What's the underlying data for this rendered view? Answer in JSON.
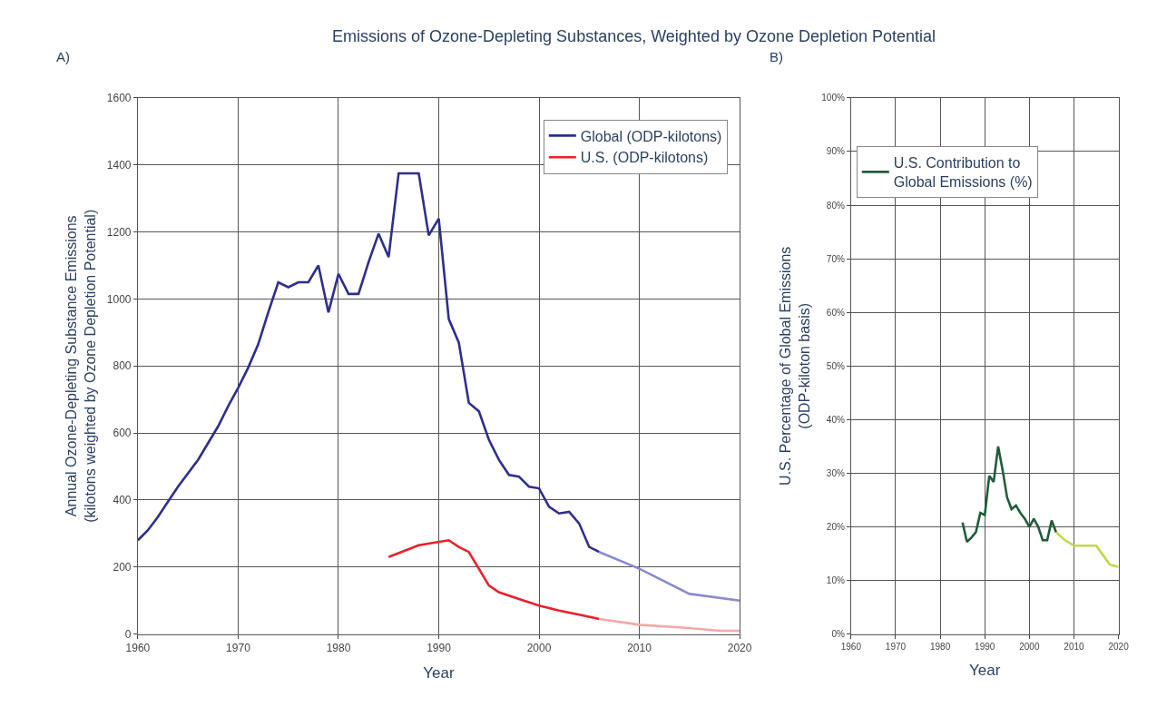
{
  "chart_data": [
    {
      "type": "line",
      "title": "Emissions of Ozone-Depleting Substances, Weighted by Ozone Depletion Potential",
      "annotations": [
        "A)"
      ],
      "xlabel": "Year",
      "ylabel": "Annual Ozone-Depleting Substance Emissions\n(kilotons weighted by Ozone Depletion Potential)",
      "xlim": [
        1960,
        2020
      ],
      "xticks": [
        1960,
        1970,
        1980,
        1990,
        2000,
        2010,
        2020
      ],
      "ylim": [
        0,
        1600
      ],
      "yticks": [
        0,
        200,
        400,
        600,
        800,
        1000,
        1200,
        1400,
        1600
      ],
      "grid": true,
      "legend": "top right",
      "line_style": "solid",
      "marker": "none",
      "series": [
        {
          "name": "Global (ODP-kilotons)",
          "color": "#2e2e8c",
          "x": [
            1960,
            1961,
            1962,
            1963,
            1964,
            1965,
            1966,
            1967,
            1968,
            1969,
            1970,
            1971,
            1972,
            1973,
            1974,
            1975,
            1976,
            1977,
            1978,
            1979,
            1980,
            1981,
            1982,
            1983,
            1984,
            1985,
            1986,
            1987,
            1988,
            1989,
            1990,
            1991,
            1992,
            1993,
            1994,
            1995,
            1996,
            1997,
            1998,
            1999,
            2000,
            2001,
            2002,
            2003,
            2004,
            2005,
            2006
          ],
          "values": [
            280,
            310,
            350,
            395,
            440,
            480,
            520,
            570,
            620,
            680,
            735,
            795,
            865,
            960,
            1050,
            1035,
            1050,
            1050,
            1100,
            960,
            1075,
            1015,
            1015,
            1110,
            1195,
            1125,
            1375,
            1375,
            1375,
            1190,
            1240,
            940,
            870,
            690,
            665,
            580,
            520,
            475,
            470,
            440,
            435,
            380,
            360,
            365,
            330,
            260,
            245
          ]
        },
        {
          "color": "#8a8ad0",
          "x": [
            2006,
            2010,
            2015,
            2020
          ],
          "values": [
            245,
            195,
            120,
            100
          ]
        },
        {
          "name": "U.S. (ODP-kilotons)",
          "color": "#e8202a",
          "x": [
            1985,
            1988,
            1991,
            1992,
            1993,
            1994,
            1995,
            1996,
            1998,
            2000,
            2002,
            2004,
            2006
          ],
          "values": [
            230,
            265,
            280,
            260,
            245,
            195,
            145,
            125,
            105,
            85,
            70,
            58,
            45
          ]
        },
        {
          "color": "#f4a8a8",
          "x": [
            2006,
            2010,
            2015,
            2018,
            2020
          ],
          "values": [
            45,
            28,
            18,
            10,
            10
          ]
        }
      ]
    },
    {
      "type": "line",
      "annotations": [
        "B)"
      ],
      "xlabel": "Year",
      "ylabel": "U.S. Percentage of Global Emissions\n(ODP-kiloton basis)",
      "xlim": [
        1960,
        2020
      ],
      "xticks": [
        1960,
        1970,
        1980,
        1990,
        2000,
        2010,
        2020
      ],
      "ylim": [
        0,
        100
      ],
      "yticks": [
        {
          "value": 0,
          "label": "0%"
        },
        {
          "value": 10,
          "label": "10%"
        },
        {
          "value": 20,
          "label": "20%"
        },
        {
          "value": 30,
          "label": "30%"
        },
        {
          "value": 40,
          "label": "40%"
        },
        {
          "value": 50,
          "label": "50%"
        },
        {
          "value": 60,
          "label": "60%"
        },
        {
          "value": 70,
          "label": "70%"
        },
        {
          "value": 80,
          "label": "80%"
        },
        {
          "value": 90,
          "label": "90%"
        },
        {
          "value": 100,
          "label": "100%"
        }
      ],
      "grid": true,
      "legend": "top left",
      "line_style": "solid",
      "marker": "none",
      "series": [
        {
          "name": "U.S. Contribution to\nGlobal Emissions (%)",
          "color": "#1f5c3a",
          "x": [
            1985,
            1986,
            1987,
            1988,
            1989,
            1990,
            1991,
            1992,
            1993,
            1994,
            1995,
            1996,
            1997,
            1998,
            1999,
            2000,
            2001,
            2002,
            2003,
            2004,
            2005,
            2006
          ],
          "values": [
            20.8,
            17.2,
            18,
            19,
            22.6,
            22.2,
            29.5,
            28.4,
            35,
            30.6,
            25.5,
            23.3,
            24,
            22.6,
            21.5,
            20,
            21.5,
            20,
            17.5,
            17.5,
            21.2,
            19
          ]
        },
        {
          "color": "#c0d850",
          "x": [
            2006,
            2008,
            2010,
            2015,
            2018,
            2020
          ],
          "values": [
            19,
            17.5,
            16.5,
            16.5,
            13,
            12.5
          ]
        }
      ]
    }
  ]
}
